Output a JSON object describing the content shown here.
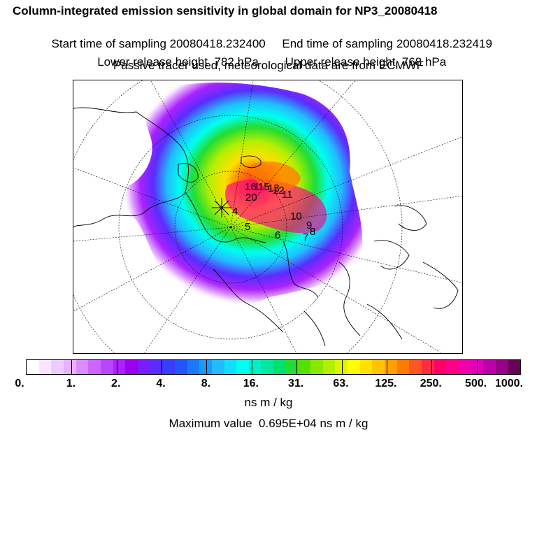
{
  "title": "Column-integrated emission sensitivity in global domain for NP3_20080418",
  "sampling": {
    "start": "Start time of sampling 20080418.232400",
    "end": "End time of sampling 20080418.232419"
  },
  "release": {
    "lower": "Lower release height  782 hPa",
    "upper": "Upper release height  768 hPa"
  },
  "tracer_note": "Passive tracer used, meteorological data are from ECMWF",
  "map": {
    "release_markers": [
      "16",
      "1",
      "15",
      "13",
      "12",
      "20",
      "11",
      "10",
      "9",
      "8",
      "7",
      "6",
      "5",
      "4"
    ]
  },
  "colorbar": {
    "colors": [
      "#ffffff",
      "#f7e6ff",
      "#efccff",
      "#e6b3ff",
      "#d98cff",
      "#cc66ff",
      "#bb44ff",
      "#aa22ff",
      "#9900ee",
      "#7a1cff",
      "#5a2cff",
      "#3a3cff",
      "#2255ff",
      "#1a77ff",
      "#1a99ff",
      "#22bbff",
      "#11ddff",
      "#00ffee",
      "#00f0c8",
      "#00e8a0",
      "#00e070",
      "#22dd33",
      "#55e000",
      "#88e800",
      "#b5ef00",
      "#ddf500",
      "#ffff00",
      "#ffe000",
      "#ffc400",
      "#ffa000",
      "#ff7a00",
      "#ff5522",
      "#ff2a44",
      "#ff0066",
      "#ff0088",
      "#ee00aa",
      "#dd00bb",
      "#bb00aa",
      "#990088",
      "#660055"
    ],
    "labels": [
      "0.",
      "1.",
      "2.",
      "4.",
      "8.",
      "16.",
      "31.",
      "63.",
      "125.",
      "250.",
      "500.",
      "1000."
    ],
    "units": "ns m / kg"
  },
  "maximum": "Maximum value  0.695E+04 ns m / kg"
}
